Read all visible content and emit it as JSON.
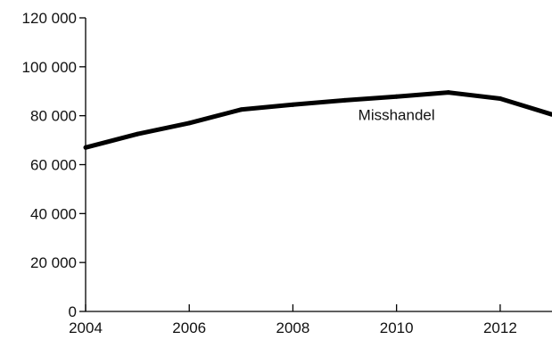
{
  "chart_data": {
    "type": "line",
    "title": "",
    "xlabel": "",
    "ylabel": "",
    "xlim": [
      2004,
      2013
    ],
    "ylim": [
      0,
      120000
    ],
    "x_ticks": [
      2004,
      2006,
      2008,
      2010,
      2012
    ],
    "x_tick_labels": [
      "2004",
      "2006",
      "2008",
      "2010",
      "2012"
    ],
    "y_ticks": [
      0,
      20000,
      40000,
      60000,
      80000,
      100000,
      120000
    ],
    "y_tick_labels": [
      "0",
      "20 000",
      "40 000",
      "60 000",
      "80 000",
      "100 000",
      "120 000"
    ],
    "grid": false,
    "series": [
      {
        "name": "Misshandel",
        "color": "#000000",
        "x": [
          2004,
          2005,
          2006,
          2007,
          2008,
          2009,
          2010,
          2011,
          2012,
          2013
        ],
        "y": [
          67000,
          72500,
          77000,
          82500,
          84500,
          86300,
          87800,
          89500,
          87000,
          80500
        ]
      }
    ]
  }
}
